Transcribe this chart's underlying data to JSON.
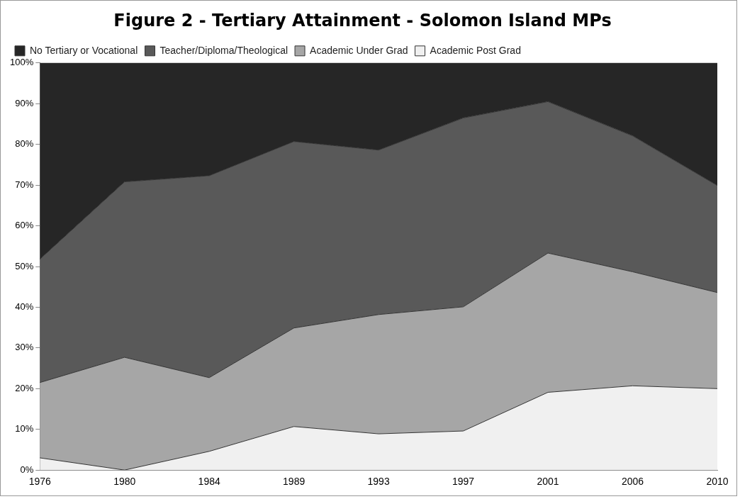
{
  "chart_data": {
    "type": "area",
    "title": "Figure 2 - Tertiary Attainment - Solomon Island MPs",
    "stacked": true,
    "categories": [
      "1976",
      "1980",
      "1984",
      "1989",
      "1993",
      "1997",
      "2001",
      "2006",
      "2010"
    ],
    "series": [
      {
        "name": "Academic Post Grad",
        "color": "#f0f0f0",
        "values": [
          3.0,
          0,
          4.6,
          10.7,
          8.9,
          9.6,
          19.1,
          20.7,
          20.0
        ]
      },
      {
        "name": "Academic Under Grad",
        "color": "#a6a6a6",
        "values": [
          18.5,
          27.7,
          18.1,
          24.2,
          29.3,
          30.5,
          34.2,
          28.0,
          23.6
        ]
      },
      {
        "name": "Teacher/Diploma/Theological",
        "color": "#595959",
        "values": [
          30.3,
          43.1,
          49.6,
          45.8,
          40.4,
          46.4,
          37.2,
          33.4,
          26.3
        ]
      },
      {
        "name": "No Tertiary or Vocational",
        "color": "#262626",
        "values": [
          48.2,
          29.2,
          27.7,
          19.3,
          21.4,
          13.5,
          9.5,
          17.9,
          30.1
        ]
      }
    ],
    "ylim": [
      0,
      100
    ],
    "yticks": [
      {
        "value": 0,
        "label": "0%"
      },
      {
        "value": 10,
        "label": "10%"
      },
      {
        "value": 20,
        "label": "20%"
      },
      {
        "value": 30,
        "label": "30%"
      },
      {
        "value": 40,
        "label": "40%"
      },
      {
        "value": 50,
        "label": "50%"
      },
      {
        "value": 60,
        "label": "60%"
      },
      {
        "value": 70,
        "label": "70%"
      },
      {
        "value": 80,
        "label": "80%"
      },
      {
        "value": 90,
        "label": "90%"
      },
      {
        "value": 100,
        "label": "100%"
      }
    ],
    "grid": false,
    "legend": "top left"
  }
}
